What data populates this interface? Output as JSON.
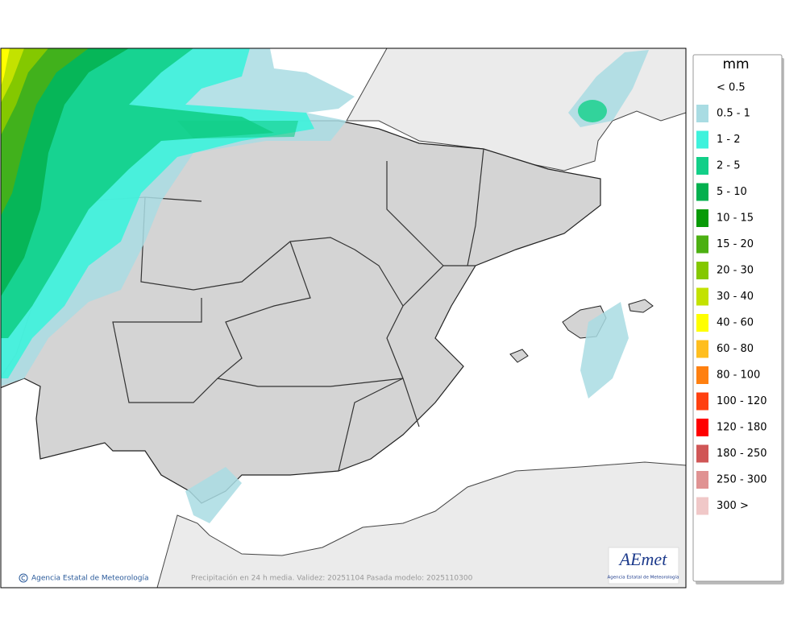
{
  "legend": {
    "title": "mm",
    "below": "< 0.5",
    "items": [
      {
        "label": "0.5 - 1",
        "color": "#a9dce3"
      },
      {
        "label": "1 - 2",
        "color": "#3ef2dc"
      },
      {
        "label": "2 - 5",
        "color": "#12cf88"
      },
      {
        "label": "5 - 10",
        "color": "#03b04e"
      },
      {
        "label": "10 - 15",
        "color": "#079a06"
      },
      {
        "label": "15 - 20",
        "color": "#4cb012"
      },
      {
        "label": "20 - 30",
        "color": "#84c800"
      },
      {
        "label": "30 - 40",
        "color": "#c3e200"
      },
      {
        "label": "40 - 60",
        "color": "#ffff00"
      },
      {
        "label": "60 - 80",
        "color": "#ffbe1e"
      },
      {
        "label": "80 - 100",
        "color": "#ff8010"
      },
      {
        "label": "100 - 120",
        "color": "#ff4010"
      },
      {
        "label": "120 - 180",
        "color": "#ff0000"
      },
      {
        "label": "180 - 250",
        "color": "#d05656"
      },
      {
        "label": "250 - 300",
        "color": "#e09292"
      },
      {
        "label": "300 >",
        "color": "#f0c8c8"
      }
    ]
  },
  "footer": {
    "credit": "Agencia Estatal de Meteorología",
    "caption": "Precipitación en 24 h media. Validez: 20251104 Pasada modelo: 2025110300"
  },
  "logo": {
    "name": "AEmet",
    "subtitle": "Agencia Estatal de Meteorología"
  }
}
